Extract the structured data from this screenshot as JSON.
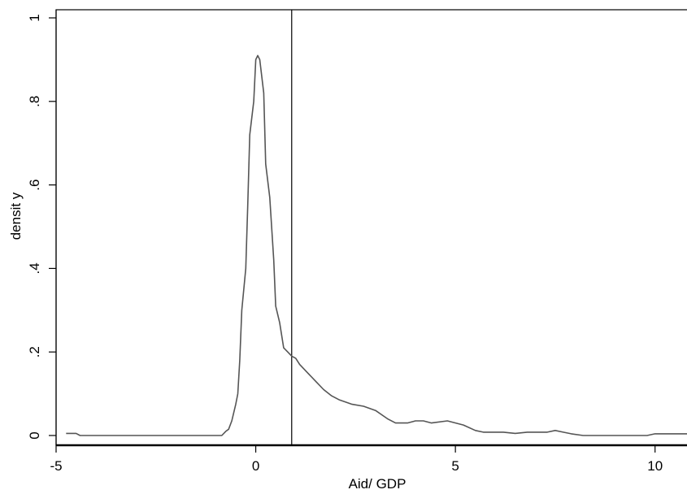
{
  "chart_data": {
    "type": "line",
    "title": "",
    "xlabel": "Aid/ GDP",
    "ylabel": "densit y",
    "xlim": [
      -5,
      10.8
    ],
    "ylim": [
      0,
      1
    ],
    "x_ticks": [
      -5,
      0,
      5,
      10
    ],
    "x_tick_labels": [
      "-5",
      "0",
      "5",
      "10"
    ],
    "y_ticks": [
      0,
      0.2,
      0.4,
      0.6,
      0.8,
      1
    ],
    "y_tick_labels": [
      "0",
      ".2",
      ".4",
      ".6",
      ".8",
      "1"
    ],
    "grid": false,
    "vertical_line_x": 0.9,
    "series": [
      {
        "color": "#555555",
        "points": [
          [
            -4.75,
            0.005
          ],
          [
            -4.5,
            0.005
          ],
          [
            -4.4,
            0.0
          ],
          [
            -3.5,
            0.0
          ],
          [
            -2.5,
            0.0
          ],
          [
            -1.5,
            0.0
          ],
          [
            -0.85,
            0.0
          ],
          [
            -0.75,
            0.01
          ],
          [
            -0.68,
            0.015
          ],
          [
            -0.6,
            0.035
          ],
          [
            -0.5,
            0.075
          ],
          [
            -0.45,
            0.1
          ],
          [
            -0.4,
            0.18
          ],
          [
            -0.35,
            0.3
          ],
          [
            -0.25,
            0.4
          ],
          [
            -0.2,
            0.55
          ],
          [
            -0.15,
            0.72
          ],
          [
            -0.05,
            0.8
          ],
          [
            0.0,
            0.9
          ],
          [
            0.05,
            0.91
          ],
          [
            0.1,
            0.9
          ],
          [
            0.2,
            0.82
          ],
          [
            0.25,
            0.65
          ],
          [
            0.35,
            0.57
          ],
          [
            0.45,
            0.42
          ],
          [
            0.5,
            0.31
          ],
          [
            0.6,
            0.27
          ],
          [
            0.7,
            0.21
          ],
          [
            0.8,
            0.2
          ],
          [
            0.9,
            0.19
          ],
          [
            1.0,
            0.185
          ],
          [
            1.1,
            0.17
          ],
          [
            1.3,
            0.15
          ],
          [
            1.5,
            0.13
          ],
          [
            1.7,
            0.11
          ],
          [
            1.9,
            0.095
          ],
          [
            2.1,
            0.085
          ],
          [
            2.4,
            0.075
          ],
          [
            2.7,
            0.07
          ],
          [
            3.0,
            0.06
          ],
          [
            3.3,
            0.04
          ],
          [
            3.5,
            0.03
          ],
          [
            3.8,
            0.03
          ],
          [
            4.0,
            0.035
          ],
          [
            4.2,
            0.035
          ],
          [
            4.4,
            0.03
          ],
          [
            4.8,
            0.035
          ],
          [
            5.2,
            0.025
          ],
          [
            5.5,
            0.012
          ],
          [
            5.7,
            0.008
          ],
          [
            6.2,
            0.008
          ],
          [
            6.5,
            0.005
          ],
          [
            6.8,
            0.008
          ],
          [
            7.3,
            0.008
          ],
          [
            7.5,
            0.012
          ],
          [
            7.7,
            0.008
          ],
          [
            7.9,
            0.004
          ],
          [
            8.2,
            0.0
          ],
          [
            9.0,
            0.0
          ],
          [
            9.8,
            0.0
          ],
          [
            10.0,
            0.004
          ],
          [
            10.8,
            0.004
          ]
        ]
      }
    ]
  }
}
